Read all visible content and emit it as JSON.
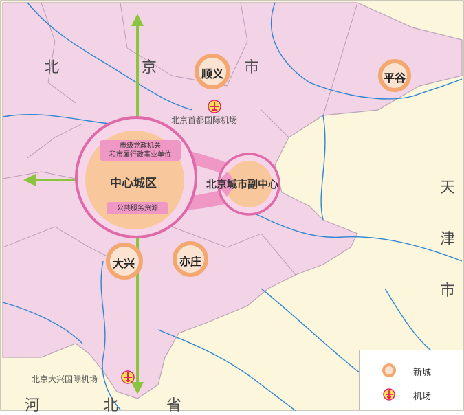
{
  "regions": {
    "beijing": [
      "北",
      "京",
      "市"
    ],
    "tianjin": [
      "天",
      "津",
      "市"
    ],
    "hebei": [
      "河",
      "北",
      "省"
    ]
  },
  "core_area": {
    "label": "中心城区",
    "note_admin_line1": "市级党政机关",
    "note_admin_line2": "和市属行政事业单位",
    "note_services": "公共服务资源"
  },
  "sub_center": {
    "label": "北京城市副中心"
  },
  "new_towns": [
    "顺义",
    "平谷",
    "大兴",
    "亦庄"
  ],
  "airports": {
    "capital": "北京首都国际机场",
    "daxing": "北京大兴国际机场"
  },
  "legend": {
    "new_town": "新城",
    "airport": "机场"
  },
  "colors": {
    "beijing_fill": "#f3d3e6",
    "other_fill": "#fbf6dc",
    "core_ring": "#e06aa9",
    "core_fill": "#f8c89c",
    "new_town_ring": "#f3a872",
    "axis": "#8bc43f",
    "river": "#2f86d0",
    "airport": "#e61e73"
  }
}
